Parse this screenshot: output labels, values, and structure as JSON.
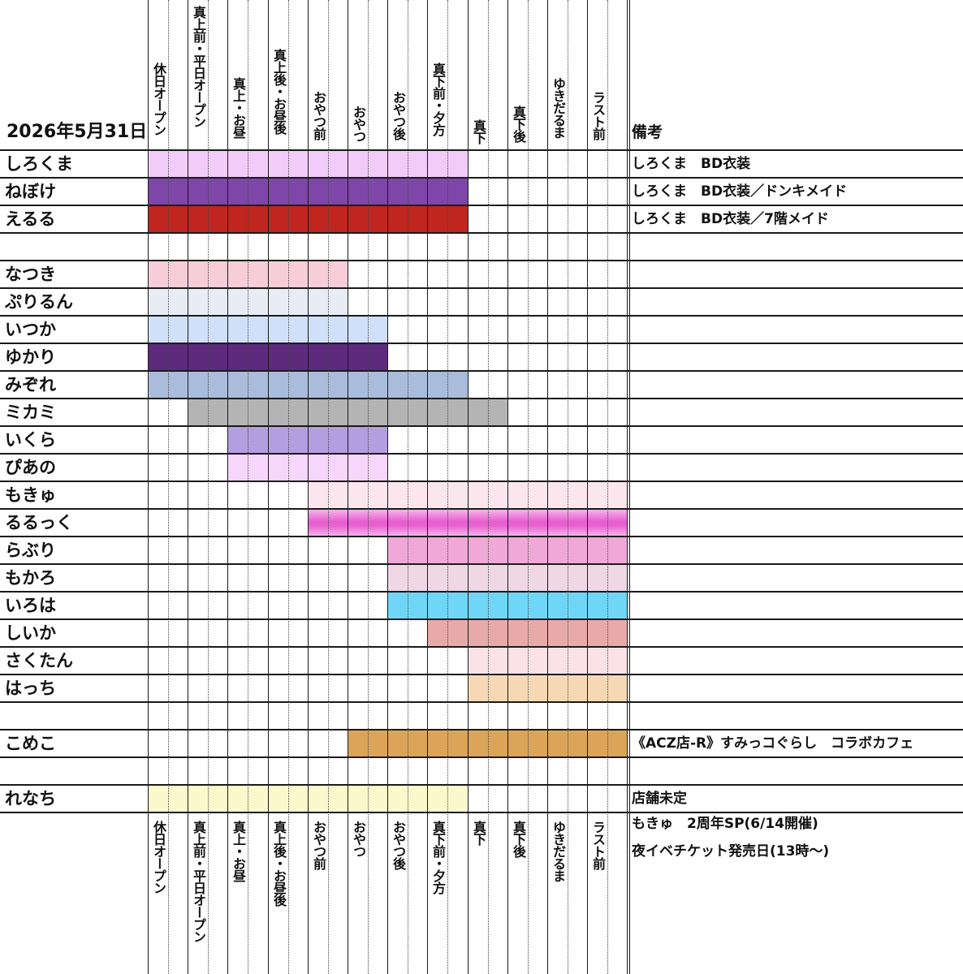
{
  "date": "2026年5月31日",
  "remarks_header": "備考",
  "time_slots": [
    "休日オープン",
    "真上前・平日オープン",
    "真上・お昼",
    "真上後・お昼後",
    "おやつ前",
    "おやつ",
    "おやつ後",
    "真下前・夕方",
    "真下",
    "真下後",
    "ゆきだるま",
    "ラスト前"
  ],
  "rows": [
    {
      "name": "しろくま",
      "start": 0,
      "end": 8,
      "color": "#f2ccf8",
      "note": "しろくま　BD衣装"
    },
    {
      "name": "ねぼけ",
      "start": 0,
      "end": 8,
      "color": "#7e46a8",
      "note": "しろくま　BD衣装／ドンキメイド"
    },
    {
      "name": "えるる",
      "start": 0,
      "end": 8,
      "color": "#c0261f",
      "note": "しろくま　BD衣装／7階メイド"
    },
    {
      "name": "",
      "start": null,
      "end": null,
      "color": "",
      "note": ""
    },
    {
      "name": "なつき",
      "start": 0,
      "end": 5,
      "color": "#f6cdd9",
      "note": ""
    },
    {
      "name": "ぷりるん",
      "start": 0,
      "end": 5,
      "color": "#e8ecf4",
      "note": ""
    },
    {
      "name": "いつか",
      "start": 0,
      "end": 6,
      "color": "#cfe0f8",
      "note": ""
    },
    {
      "name": "ゆかり",
      "start": 0,
      "end": 6,
      "color": "#5e2a7e",
      "note": ""
    },
    {
      "name": "みぞれ",
      "start": 0,
      "end": 8,
      "color": "#a9bcdc",
      "note": ""
    },
    {
      "name": "ミカミ",
      "start": 1,
      "end": 9,
      "color": "#b4b4b4",
      "note": ""
    },
    {
      "name": "いくら",
      "start": 2,
      "end": 6,
      "color": "#b39ee0",
      "note": ""
    },
    {
      "name": "ぴあの",
      "start": 2,
      "end": 6,
      "color": "#f7d6fb",
      "note": ""
    },
    {
      "name": "もきゅ",
      "start": 4,
      "end": 12,
      "color": "#fbe6ee",
      "note": ""
    },
    {
      "name": "るるっく",
      "start": 4,
      "end": 12,
      "color": "#e860d0",
      "note": ""
    },
    {
      "name": "らぶり",
      "start": 6,
      "end": 12,
      "color": "#f0a8d8",
      "note": ""
    },
    {
      "name": "もかろ",
      "start": 6,
      "end": 12,
      "color": "#efd8e4",
      "note": ""
    },
    {
      "name": "いろは",
      "start": 6,
      "end": 12,
      "color": "#6fd6f8",
      "note": ""
    },
    {
      "name": "しいか",
      "start": 7,
      "end": 12,
      "color": "#e8aaa8",
      "note": ""
    },
    {
      "name": "さくたん",
      "start": 8,
      "end": 12,
      "color": "#fae2e6",
      "note": ""
    },
    {
      "name": "はっち",
      "start": 8,
      "end": 12,
      "color": "#f6d8b4",
      "note": ""
    },
    {
      "name": "",
      "start": null,
      "end": null,
      "color": "",
      "note": ""
    },
    {
      "name": "こめこ",
      "start": 5,
      "end": 12,
      "color": "#dca458",
      "note": "《ACZ店-R》すみっコぐらし　コラボカフェ"
    },
    {
      "name": "",
      "start": null,
      "end": null,
      "color": "",
      "note": ""
    },
    {
      "name": "れなち",
      "start": 0,
      "end": 8,
      "color": "#fbf8cc",
      "note": "店舗未定"
    }
  ],
  "footer_notes": [
    "もきゅ　2周年SP(6/14開催)",
    "夜イベチケット発売日(13時〜)"
  ]
}
